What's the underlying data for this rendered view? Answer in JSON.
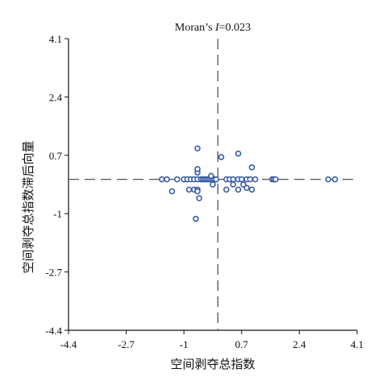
{
  "chart_data": {
    "type": "scatter",
    "title_prefix": "Moran’s ",
    "title_italic": "I",
    "title_suffix": "=0.023",
    "xlabel": "空间剥夺总指数",
    "ylabel": "空间剥夺总指数滞后向量",
    "xlim": [
      -4.4,
      4.1
    ],
    "ylim": [
      -4.4,
      4.1
    ],
    "xticks": [
      -4.4,
      -2.7,
      -1,
      0.7,
      2.4,
      4.1
    ],
    "yticks": [
      -4.4,
      -2.7,
      -1,
      0.7,
      2.4,
      4.1
    ],
    "xtick_labels": [
      "-4.4",
      "-2.7",
      "-1",
      "0.7",
      "2.4",
      "4.1"
    ],
    "ytick_labels": [
      "-4.4",
      "-2.7",
      "-1",
      "0.7",
      "2.4",
      "4.1"
    ],
    "reference_lines": {
      "x": 0,
      "y": 0
    },
    "point_color": "#2f54a0",
    "points": [
      [
        -1.65,
        0.0
      ],
      [
        -1.5,
        0.0
      ],
      [
        -1.2,
        0.0
      ],
      [
        -1.0,
        0.0
      ],
      [
        -0.9,
        0.0
      ],
      [
        -0.8,
        0.0
      ],
      [
        -0.7,
        0.0
      ],
      [
        -0.6,
        0.0
      ],
      [
        -0.5,
        0.0
      ],
      [
        -0.45,
        0.0
      ],
      [
        -0.4,
        0.0
      ],
      [
        -0.35,
        0.0
      ],
      [
        -0.3,
        0.0
      ],
      [
        -0.25,
        0.0
      ],
      [
        -0.2,
        0.0
      ],
      [
        -0.15,
        0.0
      ],
      [
        -0.1,
        0.0
      ],
      [
        -0.05,
        0.0
      ],
      [
        0.25,
        0.0
      ],
      [
        0.35,
        0.0
      ],
      [
        0.45,
        0.0
      ],
      [
        0.6,
        0.0
      ],
      [
        0.7,
        0.0
      ],
      [
        0.85,
        0.0
      ],
      [
        0.95,
        0.0
      ],
      [
        1.1,
        0.0
      ],
      [
        1.6,
        0.0
      ],
      [
        1.65,
        0.0
      ],
      [
        1.7,
        0.0
      ],
      [
        3.25,
        0.0
      ],
      [
        3.45,
        0.0
      ],
      [
        -1.35,
        -0.35
      ],
      [
        -0.85,
        -0.3
      ],
      [
        -0.7,
        -0.3
      ],
      [
        -0.6,
        -0.3
      ],
      [
        -0.55,
        -0.55
      ],
      [
        -0.6,
        -0.35
      ],
      [
        -0.15,
        -0.15
      ],
      [
        0.25,
        -0.3
      ],
      [
        0.6,
        -0.3
      ],
      [
        0.75,
        -0.15
      ],
      [
        0.85,
        -0.25
      ],
      [
        1.0,
        -0.3
      ],
      [
        0.45,
        -0.15
      ],
      [
        -0.6,
        0.2
      ],
      [
        -0.6,
        0.3
      ],
      [
        -0.2,
        0.1
      ],
      [
        0.1,
        0.65
      ],
      [
        0.6,
        0.75
      ],
      [
        -0.6,
        0.9
      ],
      [
        1.0,
        0.35
      ],
      [
        -0.65,
        -1.15
      ]
    ]
  }
}
